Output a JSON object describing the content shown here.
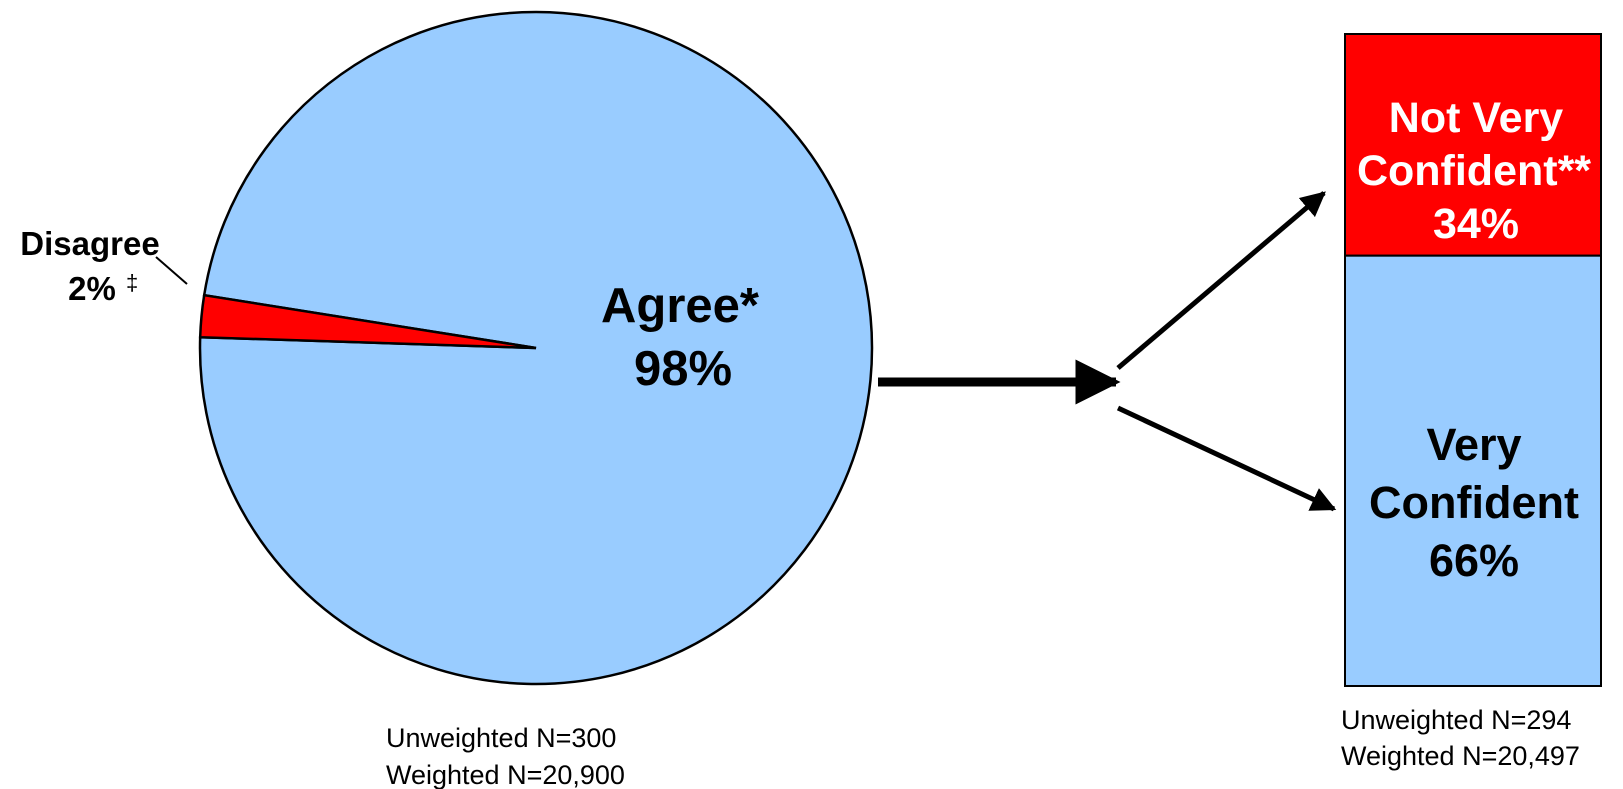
{
  "colors": {
    "agree": "#99ccff",
    "disagree": "#ff0000",
    "outline": "#000000",
    "white_text": "#ffffff"
  },
  "chart_data": [
    {
      "type": "pie",
      "slices": [
        {
          "label": "Agree*",
          "value": 98,
          "value_label": "98%",
          "color": "#99ccff"
        },
        {
          "label": "Disagree",
          "value": 2,
          "value_label": "2%",
          "marker": "‡",
          "color": "#ff0000"
        }
      ],
      "base": {
        "unweighted": "Unweighted N=300",
        "weighted": "Weighted N=20,900"
      }
    },
    {
      "type": "bar",
      "stacked": true,
      "segments": [
        {
          "label_line1": "Not Very",
          "label_line2": "Confident**",
          "value": 34,
          "value_label": "34%",
          "color": "#ff0000"
        },
        {
          "label_line1": "Very",
          "label_line2": "Confident",
          "value": 66,
          "value_label": "66%",
          "color": "#99ccff"
        }
      ],
      "base": {
        "unweighted": "Unweighted N=294",
        "weighted": "Weighted N=20,497"
      }
    }
  ]
}
